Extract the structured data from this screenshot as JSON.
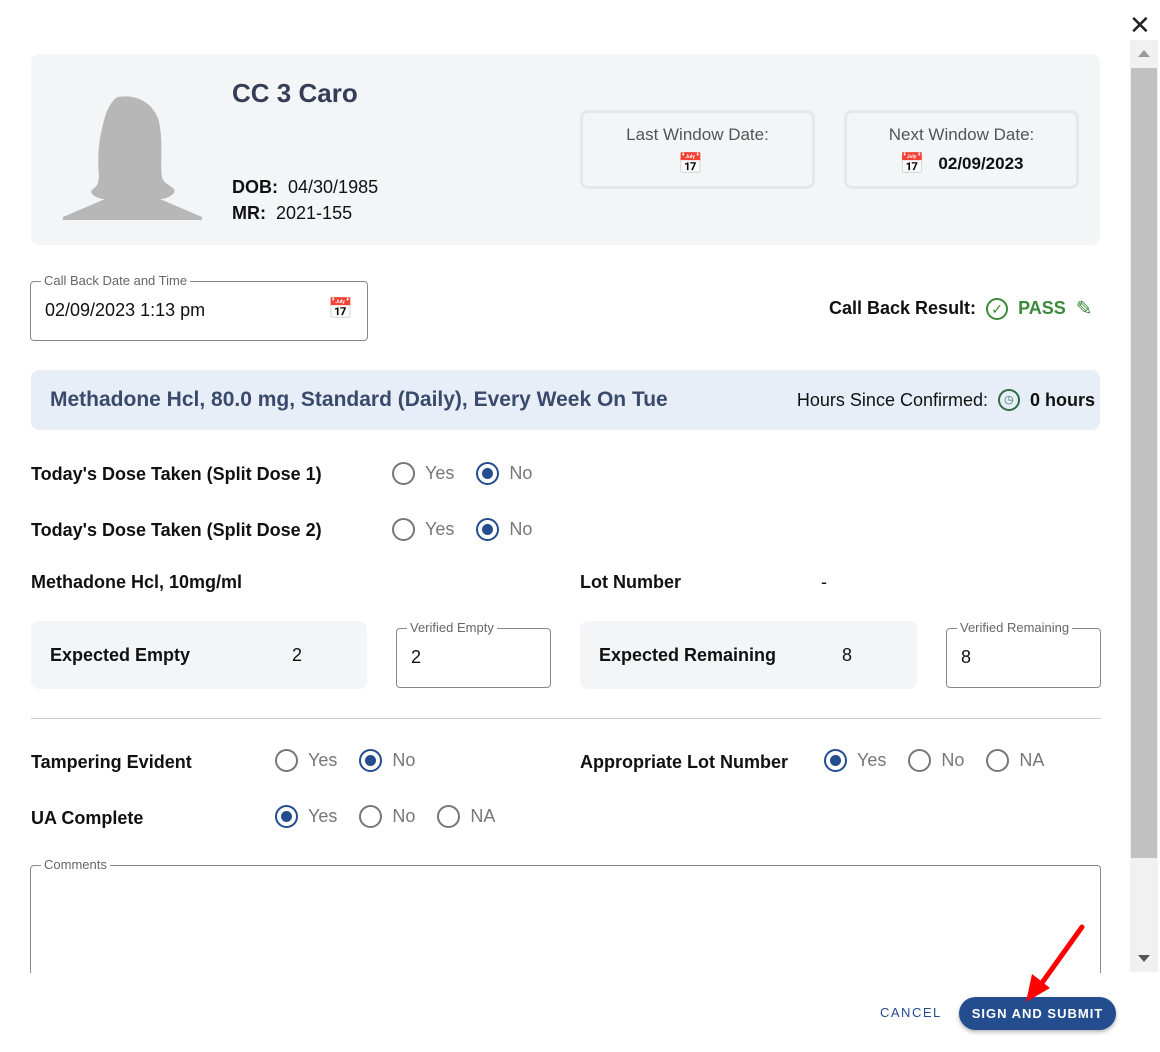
{
  "header": {
    "close_icon": "close-icon"
  },
  "patient": {
    "name": "CC 3 Caro",
    "dob_label": "DOB:",
    "dob": "04/30/1985",
    "mr_label": "MR:",
    "mr": "2021-155"
  },
  "windows": {
    "last_label": "Last Window Date:",
    "last_value": "",
    "next_label": "Next Window Date:",
    "next_value": "02/09/2023"
  },
  "callback": {
    "label": "Call Back Date and Time",
    "value": "02/09/2023 1:13 pm",
    "result_label": "Call Back Result:",
    "result": "PASS",
    "result_color": "#3a8a3a"
  },
  "dose": {
    "title": "Methadone Hcl, 80.0 mg, Standard (Daily), Every Week On Tue",
    "hours_label": "Hours Since Confirmed:",
    "hours": "0 hours"
  },
  "questions": {
    "split1": "Today's Dose Taken (Split Dose 1)",
    "split2": "Today's Dose Taken (Split Dose 2)",
    "yes": "Yes",
    "no": "No",
    "na": "NA"
  },
  "medication": {
    "name": "Methadone Hcl, 10mg/ml",
    "lot_label": "Lot Number",
    "lot_value": "-",
    "expected_empty_label": "Expected Empty",
    "expected_empty": "2",
    "verified_empty_label": "Verified Empty",
    "verified_empty": "2",
    "expected_remaining_label": "Expected Remaining",
    "expected_remaining": "8",
    "verified_remaining_label": "Verified Remaining",
    "verified_remaining": "8"
  },
  "checks": {
    "tampering": "Tampering Evident",
    "lot": "Appropriate Lot Number",
    "ua": "UA Complete"
  },
  "comments": {
    "label": "Comments",
    "value": ""
  },
  "footer": {
    "cancel": "CANCEL",
    "submit": "SIGN AND SUBMIT"
  },
  "colors": {
    "primary": "#234d8f",
    "panel": "#f4f5f7",
    "banner": "#e8eef8"
  }
}
